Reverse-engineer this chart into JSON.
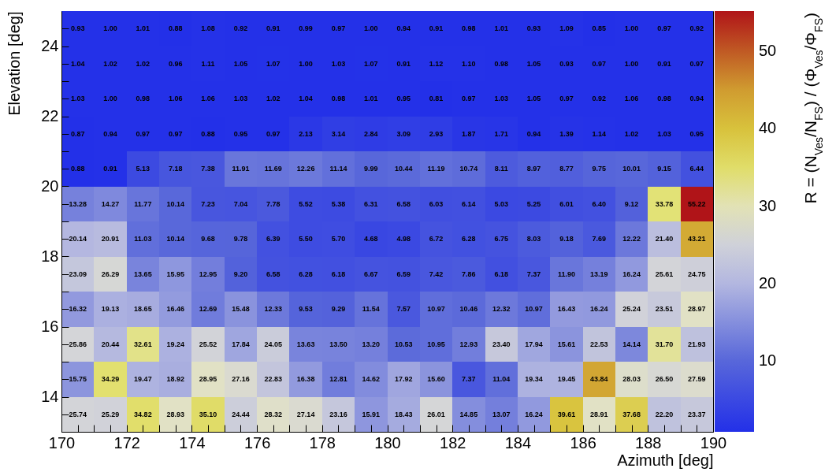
{
  "chart_data": {
    "type": "heatmap",
    "xlabel": "Azimuth [deg]",
    "ylabel": "Elevation [deg]",
    "clabel": "R = (N$_{Ves}$/N$_{FS}$) / (Φ$_{Ves}$/Φ$_{FS}$)",
    "xlim": [
      170,
      190
    ],
    "ylim": [
      13,
      25
    ],
    "xticks": [
      170,
      {
        "value": 170.5,
        "label": null
      },
      {
        "value": 171,
        "label": null
      },
      {
        "value": 171.5,
        "label": null
      },
      172,
      {
        "value": 172.5,
        "label": null
      },
      {
        "value": 173,
        "label": null
      },
      {
        "value": 173.5,
        "label": null
      },
      174,
      {
        "value": 174.5,
        "label": null
      },
      {
        "value": 175,
        "label": null
      },
      {
        "value": 175.5,
        "label": null
      },
      176,
      {
        "value": 176.5,
        "label": null
      },
      {
        "value": 177,
        "label": null
      },
      {
        "value": 177.5,
        "label": null
      },
      178,
      {
        "value": 178.5,
        "label": null
      },
      {
        "value": 179,
        "label": null
      },
      {
        "value": 179.5,
        "label": null
      },
      180,
      {
        "value": 180.5,
        "label": null
      },
      {
        "value": 181,
        "label": null
      },
      {
        "value": 181.5,
        "label": null
      },
      182,
      {
        "value": 182.5,
        "label": null
      },
      {
        "value": 183,
        "label": null
      },
      {
        "value": 183.5,
        "label": null
      },
      184,
      {
        "value": 184.5,
        "label": null
      },
      {
        "value": 185,
        "label": null
      },
      {
        "value": 185.5,
        "label": null
      },
      186,
      {
        "value": 186.5,
        "label": null
      },
      {
        "value": 187,
        "label": null
      },
      {
        "value": 187.5,
        "label": null
      },
      188,
      {
        "value": 188.5,
        "label": null
      },
      {
        "value": 189,
        "label": null
      },
      {
        "value": 189.5,
        "label": null
      },
      190
    ],
    "yticks": [
      {
        "value": 13.5,
        "label": null
      },
      14,
      {
        "value": 14.5,
        "label": null
      },
      {
        "value": 15,
        "label": null
      },
      {
        "value": 15.5,
        "label": null
      },
      16,
      {
        "value": 16.5,
        "label": null
      },
      {
        "value": 17,
        "label": null
      },
      {
        "value": 17.5,
        "label": null
      },
      18,
      {
        "value": 18.5,
        "label": null
      },
      {
        "value": 19,
        "label": null
      },
      {
        "value": 19.5,
        "label": null
      },
      20,
      {
        "value": 20.5,
        "label": null
      },
      {
        "value": 21,
        "label": null
      },
      {
        "value": 21.5,
        "label": null
      },
      22,
      {
        "value": 22.5,
        "label": null
      },
      {
        "value": 23,
        "label": null
      },
      {
        "value": 23.5,
        "label": null
      },
      24,
      {
        "value": 24.5,
        "label": null
      }
    ],
    "clim": [
      0.81,
      55.22
    ],
    "cticks": [
      10,
      20,
      30,
      40,
      50
    ],
    "cells": [
      [
        0.93,
        1.0,
        1.01,
        0.88,
        1.08,
        0.92,
        0.91,
        0.99,
        0.97,
        1.0,
        0.94,
        0.91,
        0.98,
        1.01,
        0.93,
        1.09,
        0.85,
        1.0,
        0.97,
        0.92
      ],
      [
        1.04,
        1.02,
        1.02,
        0.96,
        1.11,
        1.05,
        1.07,
        1.0,
        1.03,
        1.07,
        0.91,
        1.12,
        1.1,
        0.98,
        1.05,
        0.93,
        0.97,
        1.0,
        0.91,
        0.97
      ],
      [
        1.03,
        1.0,
        0.98,
        1.06,
        1.06,
        1.03,
        1.02,
        1.04,
        0.98,
        1.01,
        0.95,
        0.81,
        0.97,
        1.03,
        1.05,
        0.97,
        0.92,
        1.06,
        0.98,
        0.94
      ],
      [
        0.87,
        0.94,
        0.97,
        0.97,
        0.88,
        0.95,
        0.97,
        2.13,
        3.14,
        2.84,
        3.09,
        2.93,
        1.87,
        1.71,
        0.94,
        1.39,
        1.14,
        1.02,
        1.03,
        0.95
      ],
      [
        0.88,
        0.91,
        5.13,
        7.18,
        7.38,
        11.91,
        11.69,
        12.26,
        11.14,
        9.99,
        10.44,
        11.19,
        10.74,
        8.11,
        8.97,
        8.77,
        9.75,
        10.01,
        9.15,
        6.44
      ],
      [
        13.28,
        14.27,
        11.77,
        10.14,
        7.23,
        7.04,
        7.78,
        5.52,
        5.38,
        6.31,
        6.58,
        6.03,
        6.14,
        5.03,
        5.25,
        6.01,
        6.4,
        9.12,
        33.78,
        55.22
      ],
      [
        20.14,
        20.91,
        11.03,
        10.14,
        9.68,
        9.78,
        6.39,
        5.5,
        5.7,
        4.68,
        4.98,
        6.72,
        6.28,
        6.75,
        8.03,
        9.18,
        7.69,
        12.22,
        21.4,
        43.21
      ],
      [
        23.09,
        26.29,
        13.65,
        15.95,
        12.95,
        9.2,
        6.58,
        6.28,
        6.18,
        6.67,
        6.59,
        7.42,
        7.86,
        6.18,
        7.37,
        11.9,
        13.19,
        16.24,
        25.61,
        24.75
      ],
      [
        16.32,
        19.13,
        18.65,
        16.46,
        12.69,
        15.48,
        12.33,
        9.53,
        9.29,
        11.54,
        7.57,
        10.97,
        10.46,
        12.32,
        10.97,
        16.43,
        16.24,
        25.24,
        23.51,
        28.97
      ],
      [
        25.86,
        20.44,
        32.61,
        19.24,
        25.52,
        17.84,
        24.05,
        13.63,
        13.5,
        13.2,
        10.53,
        10.95,
        12.93,
        23.4,
        17.94,
        15.61,
        22.53,
        14.14,
        31.7,
        21.93
      ],
      [
        15.75,
        34.29,
        19.47,
        18.92,
        28.95,
        27.16,
        22.83,
        16.38,
        12.81,
        14.62,
        17.92,
        15.6,
        7.37,
        11.04,
        19.34,
        19.45,
        43.84,
        28.03,
        26.5,
        27.59
      ],
      [
        25.74,
        25.29,
        34.82,
        28.93,
        35.1,
        24.44,
        28.32,
        27.14,
        23.16,
        15.91,
        18.43,
        26.01,
        14.85,
        13.07,
        16.24,
        39.61,
        28.91,
        37.68,
        22.2,
        23.37
      ]
    ],
    "cell_labels": [
      [
        "0.93",
        "1.00",
        "1.01",
        "0.88",
        "1.08",
        "0.92",
        "0.91",
        "0.99",
        "0.97",
        "1.00",
        "0.94",
        "0.91",
        "0.98",
        "1.01",
        "0.93",
        "1.09",
        "0.85",
        "1.00",
        "0.97",
        "0.92"
      ],
      [
        "1.04",
        "1.02",
        "1.02",
        "0.96",
        "1.11",
        "1.05",
        "1.07",
        "1.00",
        "1.03",
        "1.07",
        "0.91",
        "1.12",
        "1.10",
        "0.98",
        "1.05",
        "0.93",
        "0.97",
        "1.00",
        "0.91",
        "0.97"
      ],
      [
        "1.03",
        "1.00",
        "0.98",
        "1.06",
        "1.06",
        "1.03",
        "1.02",
        "1.04",
        "0.98",
        "1.01",
        "0.95",
        "0.81",
        "0.97",
        "1.03",
        "1.05",
        "0.97",
        "0.92",
        "1.06",
        "0.98",
        "0.94"
      ],
      [
        "0.87",
        "0.94",
        "0.97",
        "0.97",
        "0.88",
        "0.95",
        "0.97",
        "2.13",
        "3.14",
        "2.84",
        "3.09",
        "2.93",
        "1.87",
        "1.71",
        "0.94",
        "1.39",
        "1.14",
        "1.02",
        "1.03",
        "0.95"
      ],
      [
        "0.88",
        "0.91",
        "5.13",
        "7.18",
        "7.38",
        "11.91",
        "11.69",
        "12.26",
        "11.14",
        "9.99",
        "10.44",
        "11.19",
        "10.74",
        "8.11",
        "8.97",
        "8.77",
        "9.75",
        "10.01",
        "9.15",
        "6.44"
      ],
      [
        "13.28",
        "14.27",
        "11.77",
        "10.14",
        "7.23",
        "7.04",
        "7.78",
        "5.52",
        "5.38",
        "6.31",
        "6.58",
        "6.03",
        "6.14",
        "5.03",
        "5.25",
        "6.01",
        "6.40",
        "9.12",
        "33.78",
        "55.22"
      ],
      [
        "20.14",
        "20.91",
        "11.03",
        "10.14",
        "9.68",
        "9.78",
        "6.39",
        "5.50",
        "5.70",
        "4.68",
        "4.98",
        "6.72",
        "6.28",
        "6.75",
        "8.03",
        "9.18",
        "7.69",
        "12.22",
        "21.40",
        "43.21"
      ],
      [
        "23.09",
        "26.29",
        "13.65",
        "15.95",
        "12.95",
        "9.20",
        "6.58",
        "6.28",
        "6.18",
        "6.67",
        "6.59",
        "7.42",
        "7.86",
        "6.18",
        "7.37",
        "11.90",
        "13.19",
        "16.24",
        "25.61",
        "24.75"
      ],
      [
        "16.32",
        "19.13",
        "18.65",
        "16.46",
        "12.69",
        "15.48",
        "12.33",
        "9.53",
        "9.29",
        "11.54",
        "7.57",
        "10.97",
        "10.46",
        "12.32",
        "10.97",
        "16.43",
        "16.24",
        "25.24",
        "23.51",
        "28.97"
      ],
      [
        "25.86",
        "20.44",
        "32.61",
        "19.24",
        "25.52",
        "17.84",
        "24.05",
        "13.63",
        "13.50",
        "13.20",
        "10.53",
        "10.95",
        "12.93",
        "23.40",
        "17.94",
        "15.61",
        "22.53",
        "14.14",
        "31.70",
        "21.93"
      ],
      [
        "15.75",
        "34.29",
        "19.47",
        "18.92",
        "28.95",
        "27.16",
        "22.83",
        "16.38",
        "12.81",
        "14.62",
        "17.92",
        "15.60",
        "7.37",
        "11.04",
        "19.34",
        "19.45",
        "43.84",
        "28.03",
        "26.50",
        "27.59"
      ],
      [
        "25.74",
        "25.29",
        "34.82",
        "28.93",
        "35.10",
        "24.44",
        "28.32",
        "27.14",
        "23.16",
        "15.91",
        "18.43",
        "26.01",
        "14.85",
        "13.07",
        "16.24",
        "39.61",
        "28.91",
        "37.68",
        "22.20",
        "23.37"
      ]
    ]
  }
}
